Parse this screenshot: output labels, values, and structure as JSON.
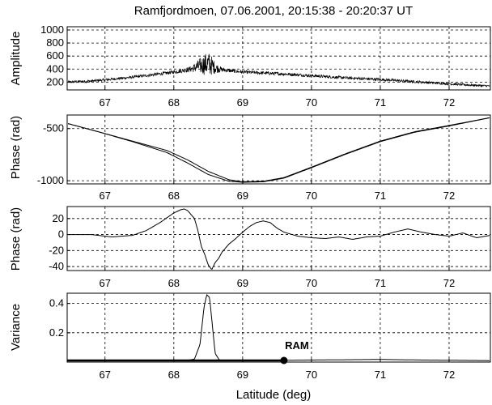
{
  "chart_data": {
    "type": "line",
    "title": "Ramfjordmoen, 07.06.2001, 20:15:38 - 20:20:37 UT",
    "xlabel": "Latitude (deg)",
    "xlim": [
      66.45,
      72.6
    ],
    "xticks": [
      67,
      68,
      69,
      70,
      71,
      72
    ],
    "grid": true,
    "panels": [
      {
        "ylabel": "Amplitude",
        "ylim": [
          80,
          1050
        ],
        "yticks": [
          200,
          400,
          600,
          800,
          1000
        ],
        "noisy": true,
        "series": [
          {
            "x": [
              66.45,
              66.8,
              67.0,
              67.3,
              67.6,
              67.9,
              68.1,
              68.25,
              68.35,
              68.45,
              68.5,
              68.55,
              68.6,
              68.7,
              68.85,
              69.0,
              69.3,
              69.6,
              69.9,
              70.2,
              70.5,
              70.8,
              71.0,
              71.3,
              71.6,
              71.9,
              72.2,
              72.6
            ],
            "y": [
              200,
              215,
              235,
              265,
              300,
              340,
              370,
              400,
              440,
              470,
              480,
              455,
              420,
              390,
              370,
              355,
              340,
              325,
              305,
              285,
              265,
              250,
              240,
              220,
              200,
              180,
              160,
              140
            ],
            "spread": [
              40,
              40,
              40,
              40,
              45,
              50,
              60,
              90,
              200,
              330,
              380,
              300,
              170,
              70,
              55,
              50,
              50,
              50,
              45,
              45,
              45,
              45,
              45,
              40,
              40,
              35,
              35,
              30
            ]
          }
        ]
      },
      {
        "ylabel": "Phase (rad)",
        "ylim": [
          -1030,
          -370
        ],
        "yticks": [
          -500,
          -1000
        ],
        "series": [
          {
            "x": [
              66.45,
              66.9,
              67.4,
              67.9,
              68.2,
              68.5,
              68.8,
              69.0,
              69.3,
              69.6,
              70.0,
              70.5,
              71.0,
              71.5,
              72.0,
              72.6
            ],
            "y": [
              -450,
              -530,
              -620,
              -710,
              -800,
              -910,
              -990,
              -1010,
              -1005,
              -970,
              -870,
              -740,
              -620,
              -530,
              -470,
              -395
            ]
          },
          {
            "x": [
              66.45,
              66.9,
              67.4,
              67.9,
              68.2,
              68.5,
              68.8,
              69.0,
              69.3,
              69.6,
              70.0,
              70.5,
              71.0,
              71.5,
              72.0,
              72.6
            ],
            "y": [
              -450,
              -530,
              -625,
              -730,
              -830,
              -940,
              -1005,
              -1015,
              -1010,
              -975,
              -875,
              -745,
              -625,
              -535,
              -475,
              -395
            ]
          }
        ]
      },
      {
        "ylabel": "Phase (rad)",
        "ylim": [
          -45,
          35
        ],
        "yticks": [
          20,
          0,
          -20,
          -40
        ],
        "series": [
          {
            "x": [
              66.45,
              66.8,
              67.1,
              67.4,
              67.6,
              67.8,
              68.0,
              68.1,
              68.15,
              68.2,
              68.3,
              68.35,
              68.4,
              68.45,
              68.5,
              68.55,
              68.6,
              68.65,
              68.7,
              68.8,
              68.9,
              69.0,
              69.1,
              69.2,
              69.3,
              69.4,
              69.5,
              69.6,
              69.8,
              70.0,
              70.2,
              70.4,
              70.6,
              70.8,
              71.0,
              71.2,
              71.4,
              71.6,
              71.8,
              72.0,
              72.2,
              72.4,
              72.6
            ],
            "y": [
              0,
              0,
              -3,
              -1,
              5,
              15,
              27,
              31,
              32,
              30,
              20,
              5,
              -15,
              -25,
              -38,
              -44,
              -35,
              -30,
              -22,
              -12,
              -5,
              3,
              10,
              15,
              17,
              15,
              8,
              3,
              -2,
              -4,
              -5,
              -3,
              -6,
              -3,
              -2,
              3,
              7,
              3,
              0,
              -2,
              2,
              -4,
              -1
            ]
          }
        ]
      },
      {
        "ylabel": "Variance",
        "ylim": [
          0,
          0.47
        ],
        "yticks": [
          0.4,
          0.2
        ],
        "series": [
          {
            "x": [
              66.45,
              68.2,
              68.3,
              68.38,
              68.44,
              68.48,
              68.52,
              68.56,
              68.6,
              68.66,
              68.75,
              69.5,
              70.3,
              71.0,
              71.6,
              72.6
            ],
            "y": [
              0.01,
              0.012,
              0.02,
              0.12,
              0.38,
              0.46,
              0.44,
              0.25,
              0.06,
              0.015,
              0.01,
              0.012,
              0.015,
              0.018,
              0.014,
              0.01
            ]
          }
        ],
        "annotation": {
          "label": "RAM",
          "x": 69.6,
          "y": 0.0
        }
      }
    ]
  }
}
